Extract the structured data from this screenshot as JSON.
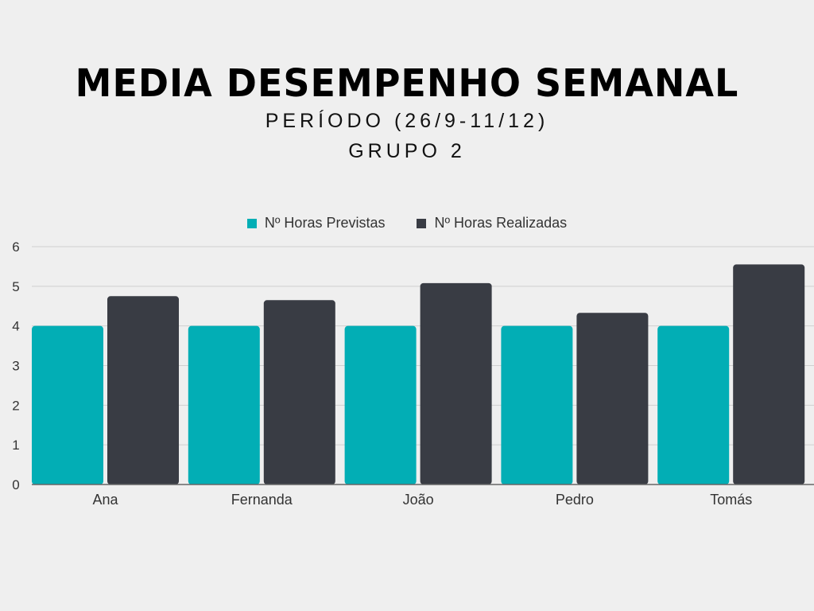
{
  "title": "MEDIA DESEMPENHO SEMANAL",
  "subtitle_1": "PERÍODO (26/9-11/12)",
  "subtitle_2": "GRUPO 2",
  "colors": {
    "previstas": "#02aeb5",
    "realizadas": "#393c44",
    "grid": "#cfcfcf",
    "axis": "#666666"
  },
  "chart_data": {
    "type": "bar",
    "categories": [
      "Ana",
      "Fernanda",
      "João",
      "Pedro",
      "Tomás"
    ],
    "series": [
      {
        "name": "Nº Horas Previstas",
        "values": [
          4,
          4,
          4,
          4,
          4
        ]
      },
      {
        "name": "Nº Horas Realizadas",
        "values": [
          4.75,
          4.65,
          5.08,
          4.33,
          5.55
        ]
      }
    ],
    "ylim": [
      0,
      6
    ],
    "yticks": [
      "0",
      "1",
      "2",
      "3",
      "4",
      "5",
      "6"
    ],
    "grid": true,
    "legend": "top-center"
  }
}
